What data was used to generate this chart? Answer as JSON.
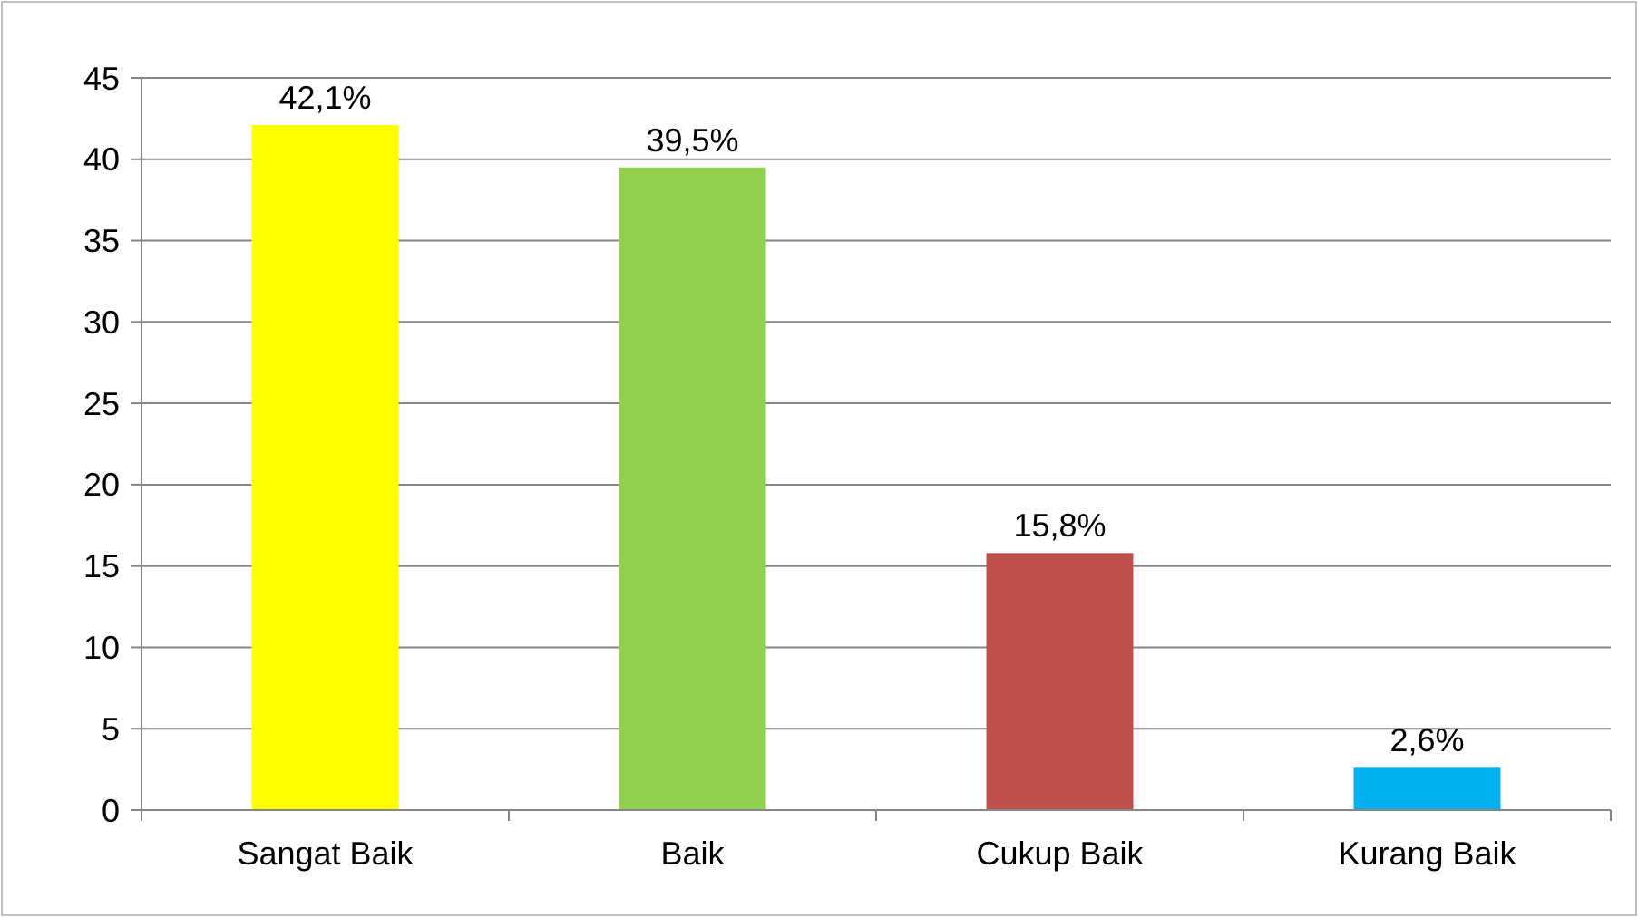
{
  "chart_data": {
    "type": "bar",
    "categories": [
      "Sangat Baik",
      "Baik",
      "Cukup Baik",
      "Kurang Baik"
    ],
    "values": [
      42.1,
      39.5,
      15.8,
      2.6
    ],
    "colors": [
      "#ffff00",
      "#92d050",
      "#c0504d",
      "#00b0f0"
    ],
    "value_labels": [
      "42,1%",
      "39,5%",
      "15,8%",
      "2,6%"
    ],
    "ylim": [
      0,
      45
    ],
    "yticks": [
      0,
      5,
      10,
      15,
      20,
      25,
      30,
      35,
      40,
      45
    ],
    "grid": "y"
  }
}
